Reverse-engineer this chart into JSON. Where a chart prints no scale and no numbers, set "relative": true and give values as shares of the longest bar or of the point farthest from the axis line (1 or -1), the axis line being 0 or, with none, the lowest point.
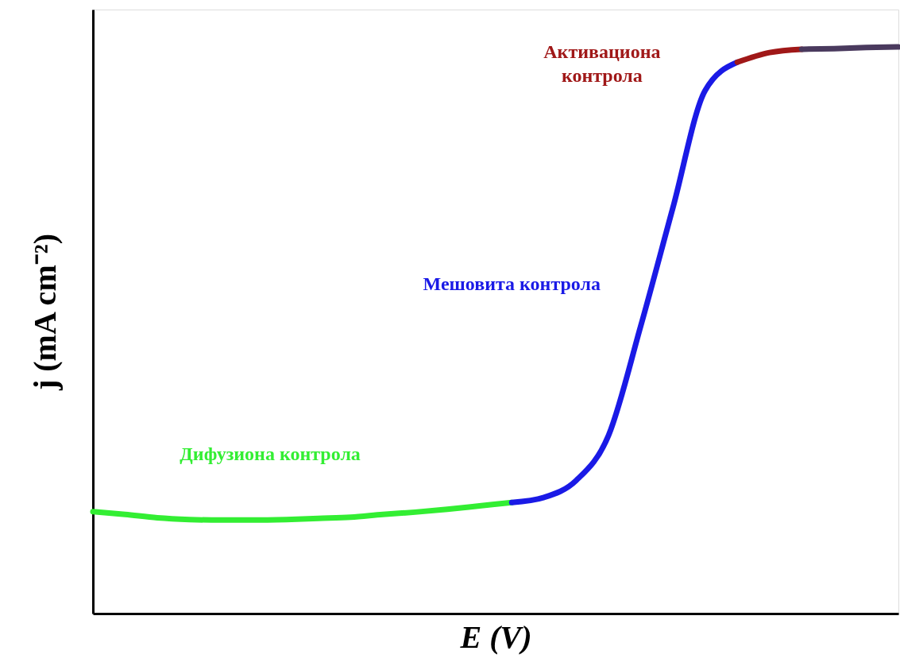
{
  "chart_data": {
    "type": "line",
    "relative": true,
    "xlabel": "E (V)",
    "ylabel": "j (mA cm⁻²)",
    "categories": [
      null,
      null,
      null,
      null,
      null,
      null,
      null,
      null,
      null,
      null,
      null,
      null,
      null,
      null,
      null,
      null,
      null,
      null,
      null,
      null,
      null,
      null,
      null,
      null,
      null,
      null
    ],
    "grid": false,
    "marker": "none",
    "line_style": "solid",
    "tick_labels": false,
    "series": [
      {
        "name": "Дифузиона контрола",
        "color": "#33ee33",
        "values": [
          0.18,
          0.175,
          0.169,
          0.166,
          0.165,
          0.165,
          0.166,
          0.168,
          0.17,
          0.175,
          0.179,
          0.184,
          0.19,
          0.196,
          null,
          null,
          null,
          null,
          null,
          null,
          null,
          null,
          null,
          null,
          null,
          null
        ]
      },
      {
        "name": "Мешовита контрола",
        "color": "#1a1ae6",
        "values": [
          null,
          null,
          null,
          null,
          null,
          null,
          null,
          null,
          null,
          null,
          null,
          null,
          null,
          0.196,
          0.205,
          0.235,
          0.314,
          0.507,
          0.716,
          0.923,
          0.973,
          null,
          null,
          null,
          null,
          null
        ]
      },
      {
        "name": "Активациона\nконтрола",
        "color": "#a01818",
        "values": [
          null,
          null,
          null,
          null,
          null,
          null,
          null,
          null,
          null,
          null,
          null,
          null,
          null,
          null,
          null,
          null,
          null,
          null,
          null,
          null,
          0.973,
          0.99,
          0.996,
          null,
          null,
          null
        ]
      },
      {
        "color": "#4a3a5e",
        "values": [
          null,
          null,
          null,
          null,
          null,
          null,
          null,
          null,
          null,
          null,
          null,
          null,
          null,
          null,
          null,
          null,
          null,
          null,
          null,
          null,
          null,
          null,
          0.996,
          0.997,
          0.999,
          1
        ]
      }
    ]
  }
}
